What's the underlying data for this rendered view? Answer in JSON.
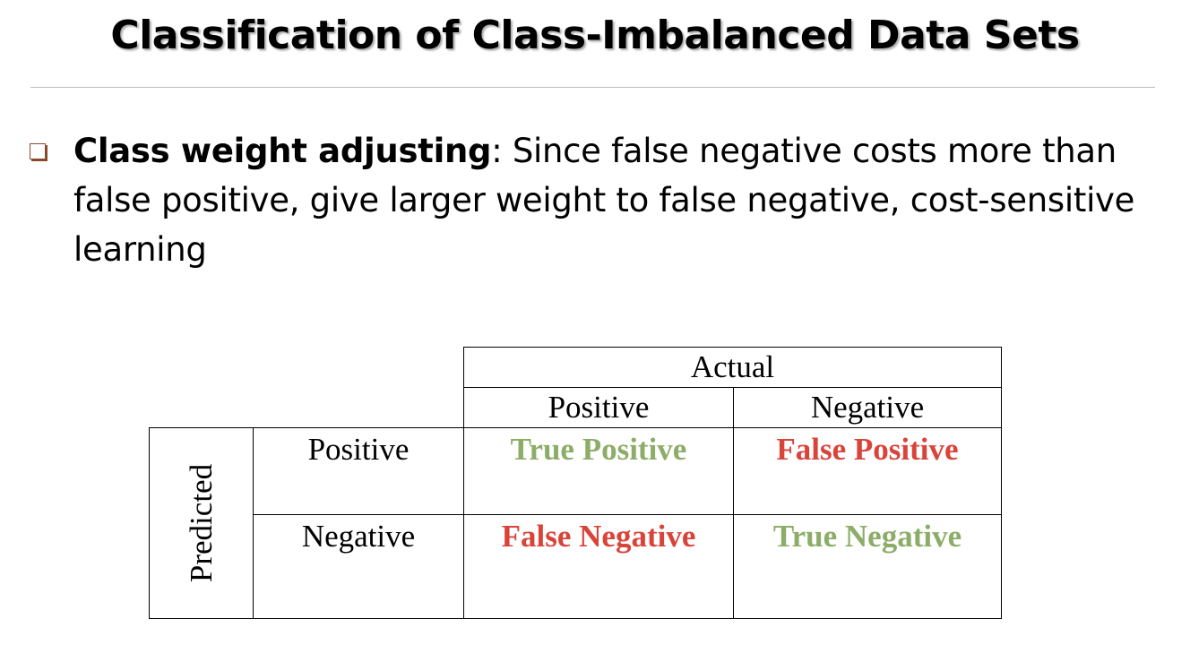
{
  "title": "Classification of Class-Imbalanced Data Sets",
  "bullet": {
    "term": "Class weight adjusting",
    "text": ": Since false negative costs more than false positive, give larger weight to false negative, cost-sensitive learning"
  },
  "confusion_matrix": {
    "actual_label": "Actual",
    "predicted_label": "Predicted",
    "columns": [
      "Positive",
      "Negative"
    ],
    "rows": [
      "Positive",
      "Negative"
    ],
    "cells": {
      "pp": {
        "text": "True Positive",
        "color": "#8cad68"
      },
      "pn": {
        "text": "False Positive",
        "color": "#d9443a"
      },
      "np": {
        "text": "False Negative",
        "color": "#d9443a"
      },
      "nn": {
        "text": "True Negative",
        "color": "#8cad68"
      }
    }
  },
  "colors": {
    "bullet_marker": "#8a4a2a",
    "true_cell": "#8cad68",
    "false_cell": "#d9443a",
    "rule": "#bdbdbd"
  }
}
